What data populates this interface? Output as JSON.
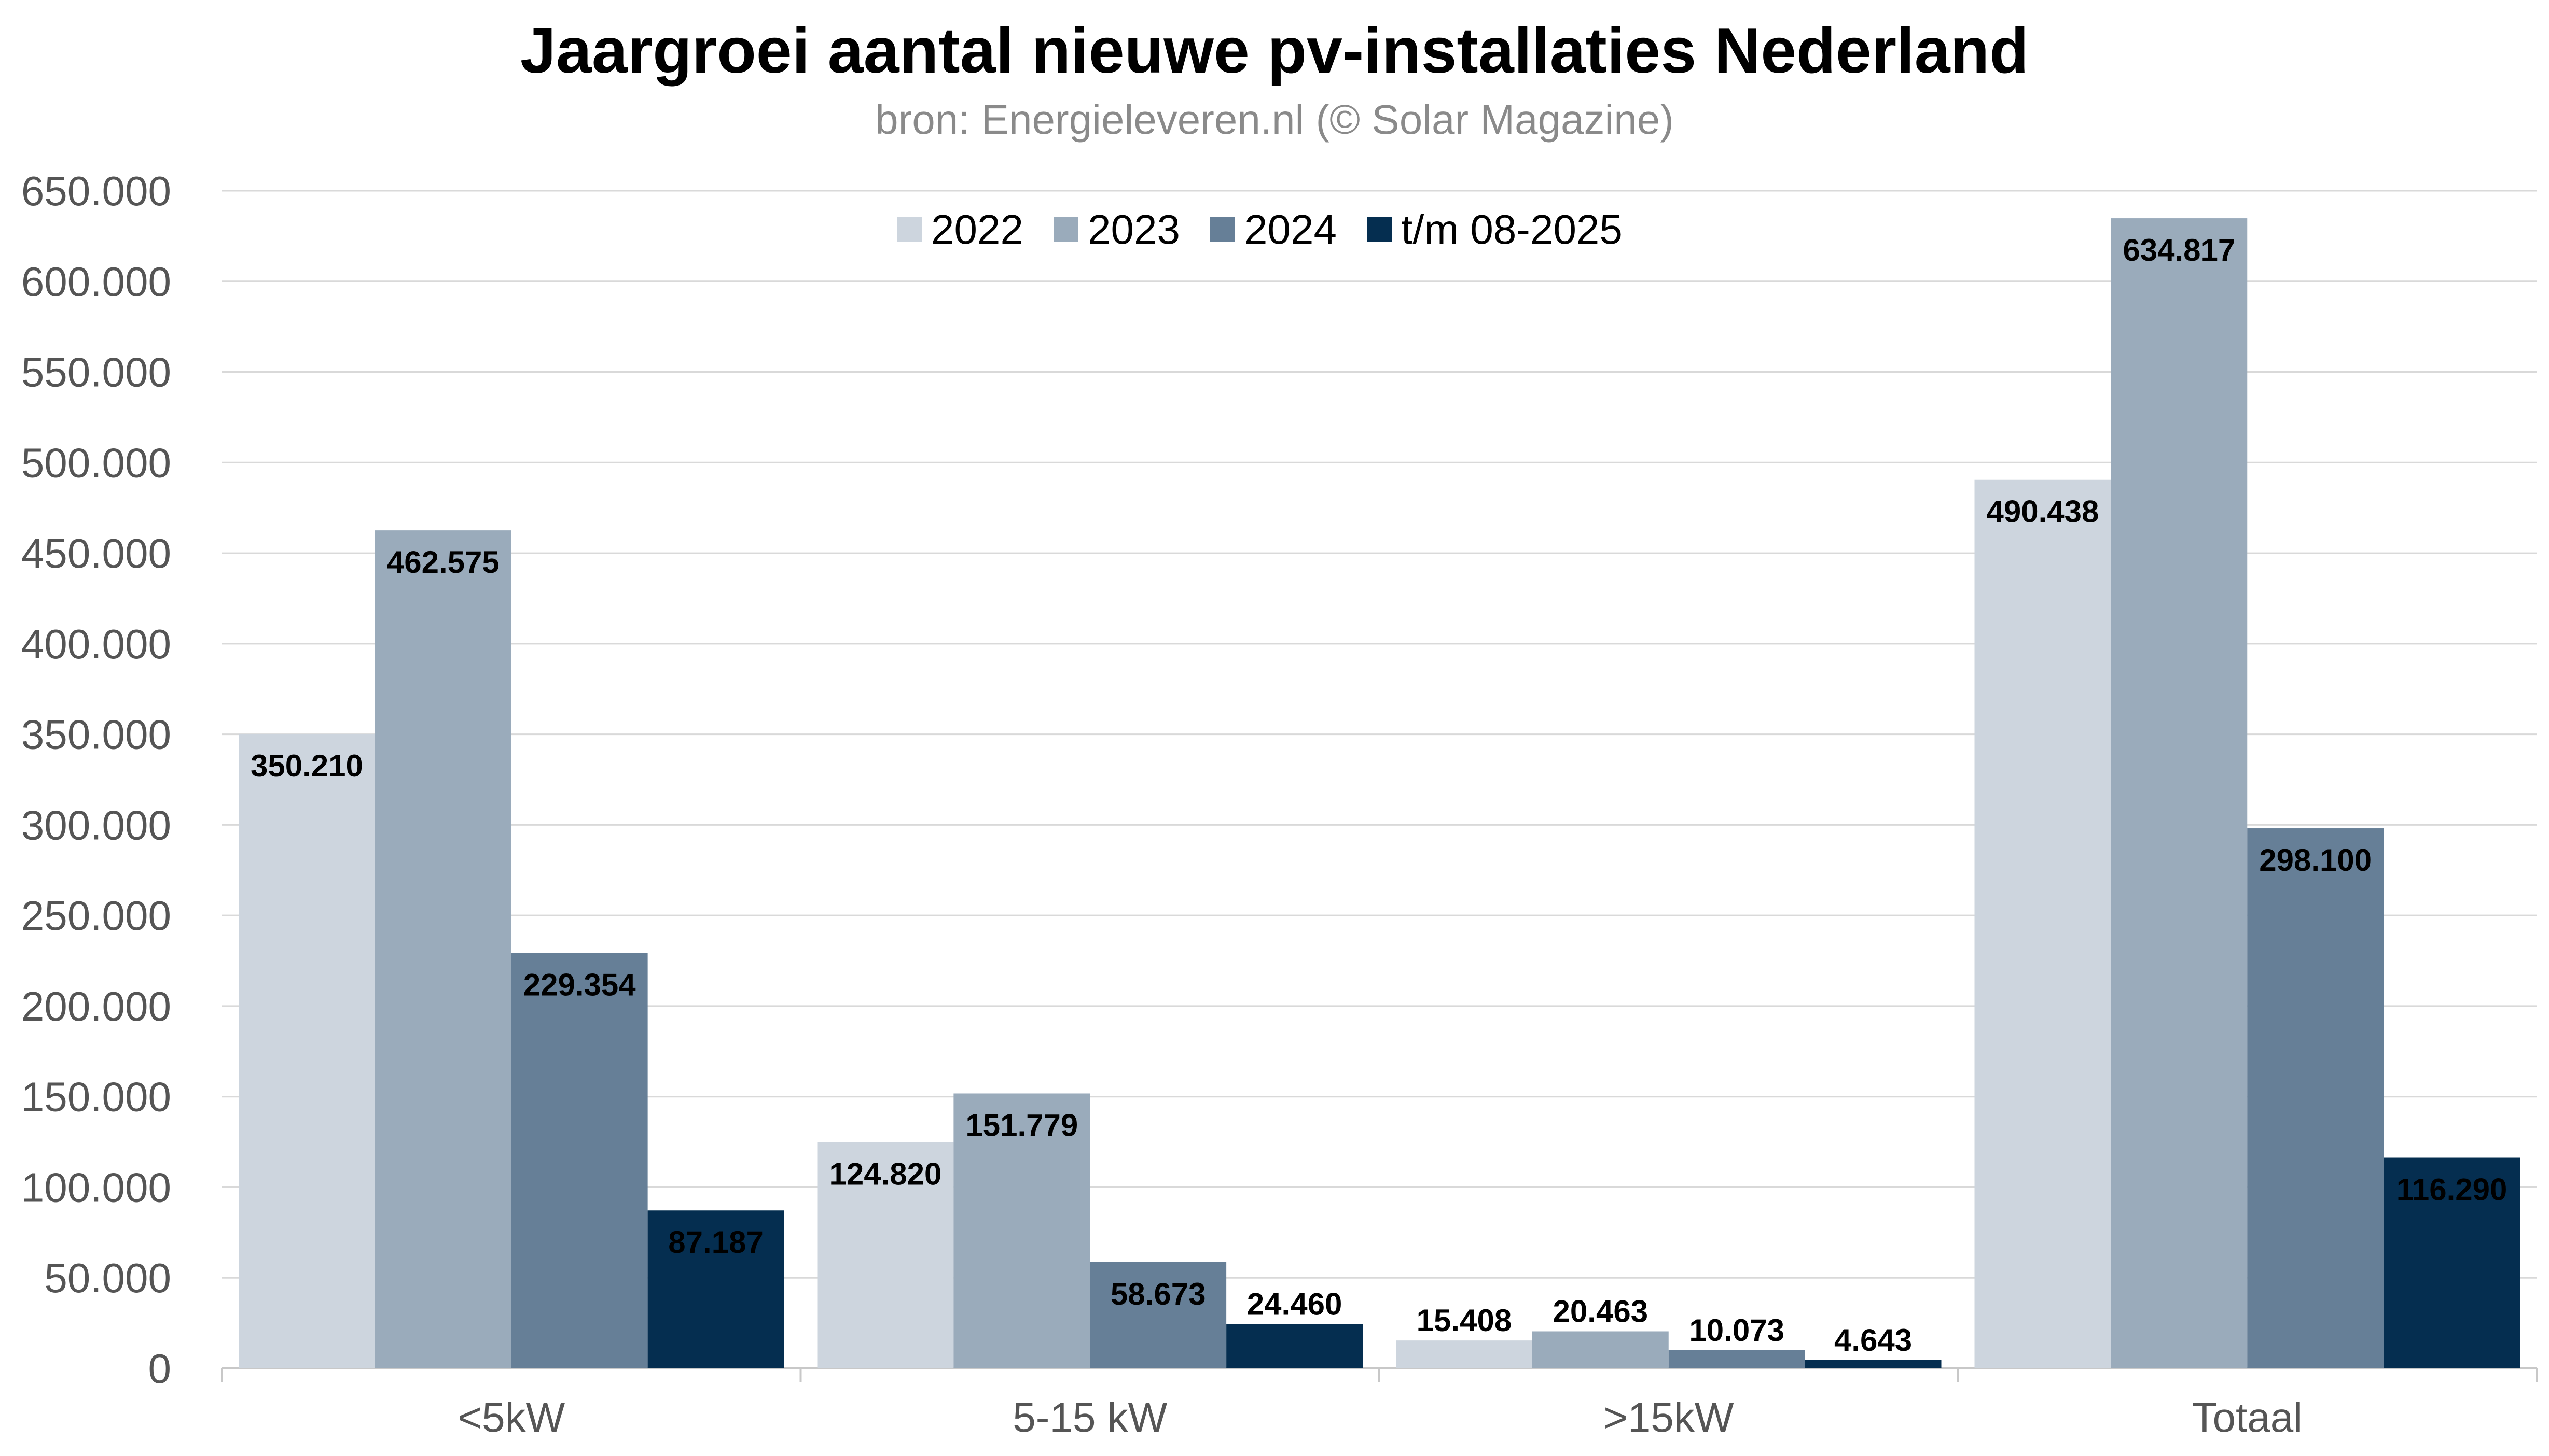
{
  "chart_data": {
    "type": "bar",
    "title": "Jaargroei aantal nieuwe pv-installaties Nederland",
    "subtitle": "bron: Energieleveren.nl (© Solar Magazine)",
    "xlabel": "",
    "ylabel": "",
    "ylim": [
      0,
      650000
    ],
    "y_ticks": [
      0,
      50000,
      100000,
      150000,
      200000,
      250000,
      300000,
      350000,
      400000,
      450000,
      500000,
      550000,
      600000,
      650000
    ],
    "y_tick_labels": [
      "0",
      "50.000",
      "100.000",
      "150.000",
      "200.000",
      "250.000",
      "300.000",
      "350.000",
      "400.000",
      "450.000",
      "500.000",
      "550.000",
      "600.000",
      "650.000"
    ],
    "grid": true,
    "legend_position": "top-center",
    "categories": [
      "<5kW",
      "5-15 kW",
      ">15kW",
      "Totaal"
    ],
    "series": [
      {
        "name": "2022",
        "color": "#cdd5de",
        "values": [
          350210,
          124820,
          15408,
          490438
        ],
        "labels": [
          "350.210",
          "124.820",
          "15.408",
          "490.438"
        ]
      },
      {
        "name": "2023",
        "color": "#9aabbb",
        "values": [
          462575,
          151779,
          20463,
          634817
        ],
        "labels": [
          "462.575",
          "151.779",
          "20.463",
          "634.817"
        ]
      },
      {
        "name": "2024",
        "color": "#667f97",
        "values": [
          229354,
          58673,
          10073,
          298100
        ],
        "labels": [
          "229.354",
          "58.673",
          "10.073",
          "298.100"
        ]
      },
      {
        "name": "t/m 08-2025",
        "color": "#052e50",
        "values": [
          87187,
          24460,
          4643,
          116290
        ],
        "labels": [
          "87.187",
          "24.460",
          "4.643",
          "116.290"
        ]
      }
    ]
  }
}
